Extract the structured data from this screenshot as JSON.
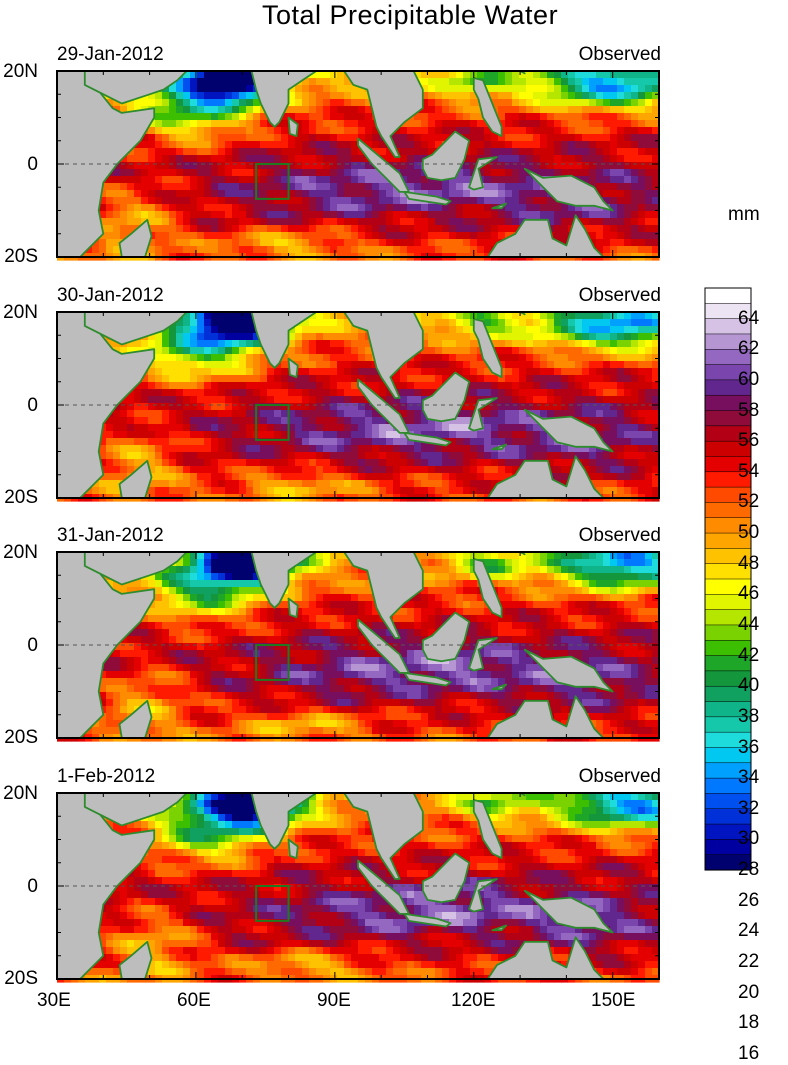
{
  "title": "Total Precipitable Water",
  "units": "mm",
  "panels": [
    {
      "date": "29-Jan-2012",
      "label": "Observed"
    },
    {
      "date": "30-Jan-2012",
      "label": "Observed"
    },
    {
      "date": "31-Jan-2012",
      "label": "Observed"
    },
    {
      "date": "1-Feb-2012",
      "label": "Observed"
    }
  ],
  "lat_labels": [
    "20N",
    "0",
    "20S"
  ],
  "lon_labels": [
    "30E",
    "60E",
    "90E",
    "120E",
    "150E"
  ],
  "colorbar_labels": [
    "64",
    "62",
    "60",
    "58",
    "56",
    "54",
    "52",
    "50",
    "48",
    "46",
    "44",
    "42",
    "40",
    "38",
    "36",
    "34",
    "32",
    "30",
    "28",
    "26",
    "24",
    "22",
    "20",
    "18",
    "16"
  ],
  "colorbar_colors": [
    "#ffffff",
    "#ece4f2",
    "#d5c2e5",
    "#b596d2",
    "#9468c0",
    "#7a45ad",
    "#62278f",
    "#780f5e",
    "#8e0b3a",
    "#b30015",
    "#cc0000",
    "#e50000",
    "#ff1a00",
    "#ff4a00",
    "#ff6a00",
    "#ff8c00",
    "#ffa500",
    "#ffc200",
    "#ffe000",
    "#ffff00",
    "#e1f500",
    "#b4e600",
    "#7ad200",
    "#3cbf00",
    "#1ea628",
    "#14963c",
    "#10a060",
    "#0fb488",
    "#15c8aa",
    "#1edcdc",
    "#00c8f0",
    "#00a0ff",
    "#0078ff",
    "#0050f0",
    "#0030d8",
    "#0014c0",
    "#0000a0",
    "#00006e"
  ],
  "colors": {
    "land": "#bdbdbd",
    "coast": "#2e8b2e",
    "box": "#1f7a1f"
  }
}
